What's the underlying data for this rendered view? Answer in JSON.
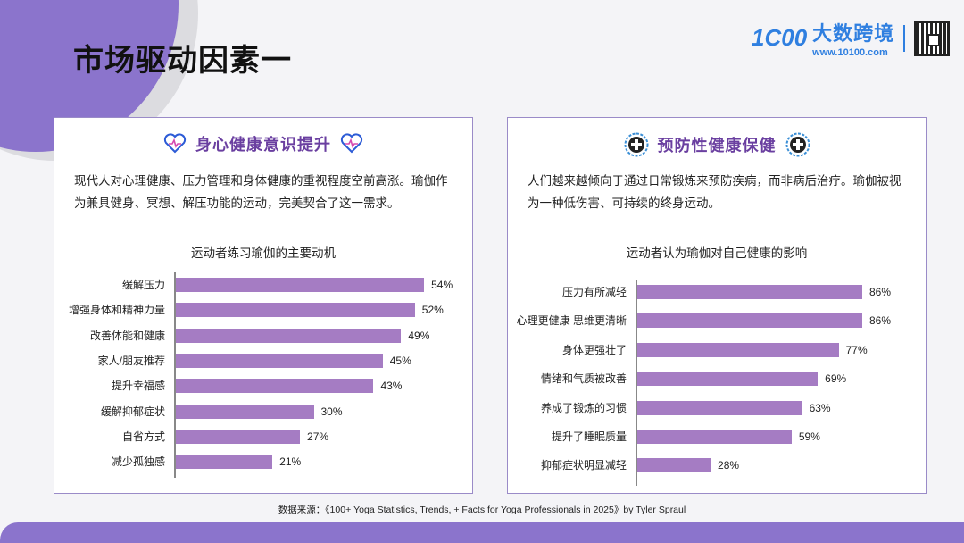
{
  "header": {
    "title": "市场驱动因素一",
    "logo": {
      "mark": "1C00",
      "name": "大数跨境",
      "url": "www.10100.com"
    }
  },
  "colors": {
    "accent": "#8b74cc",
    "bar": "#a57cc3",
    "card_title": "#6a3fa0",
    "logo": "#2f7fe0"
  },
  "left_card": {
    "icon": "heart-pulse-icon",
    "title": "身心健康意识提升",
    "description": "现代人对心理健康、压力管理和身体健康的重视程度空前高涨。瑜伽作为兼具健身、冥想、解压功能的运动，完美契合了这一需求。",
    "chart_title": "运动者练习瑜伽的主要动机"
  },
  "right_card": {
    "icon": "medical-cross-badge-icon",
    "title": "预防性健康保健",
    "description": "人们越来越倾向于通过日常锻炼来预防疾病，而非病后治疗。瑜伽被视为一种低伤害、可持续的终身运动。",
    "chart_title": "运动者认为瑜伽对自己健康的影响"
  },
  "chart_data": [
    {
      "type": "bar",
      "orientation": "horizontal",
      "title": "运动者练习瑜伽的主要动机",
      "categories": [
        "缓解压力",
        "增强身体和精神力量",
        "改善体能和健康",
        "家人/朋友推荐",
        "提升幸福感",
        "缓解抑郁症状",
        "自省方式",
        "减少孤独感"
      ],
      "values": [
        54,
        52,
        49,
        45,
        43,
        30,
        27,
        21
      ],
      "labels": [
        "54%",
        "52%",
        "49%",
        "45%",
        "43%",
        "30%",
        "27%",
        "21%"
      ],
      "unit": "%",
      "grid": false,
      "legend": null
    },
    {
      "type": "bar",
      "orientation": "horizontal",
      "title": "运动者认为瑜伽对自己健康的影响",
      "categories": [
        "压力有所减轻",
        "心理更健康 思维更清晰",
        "身体更强壮了",
        "情绪和气质被改善",
        "养成了锻炼的习惯",
        "提升了睡眠质量",
        "抑郁症状明显减轻"
      ],
      "values": [
        86,
        86,
        77,
        69,
        63,
        59,
        28
      ],
      "labels": [
        "86%",
        "86%",
        "77%",
        "69%",
        "63%",
        "59%",
        "28%"
      ],
      "unit": "%",
      "grid": false,
      "legend": null
    }
  ],
  "footer": {
    "source": "数据来源：《100+ Yoga Statistics, Trends, + Facts for Yoga Professionals in 2025》by Tyler Spraul"
  }
}
